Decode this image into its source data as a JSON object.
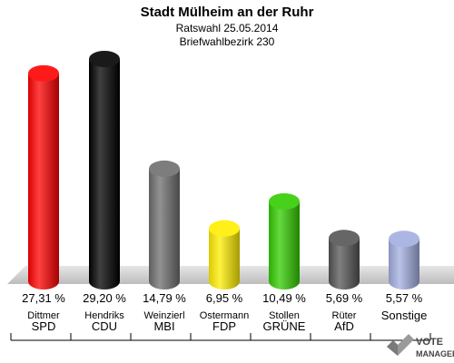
{
  "chart_data": {
    "type": "bar",
    "title": "Stadt Mülheim an der Ruhr",
    "subtitle": "Ratswahl 25.05.2014",
    "subtitle2": "Briefwahlbezirk 230",
    "xlabel": "",
    "ylabel": "",
    "ylim": [
      0,
      30
    ],
    "grid": false,
    "categories": [
      "SPD",
      "CDU",
      "MBI",
      "FDP",
      "GRÜNE",
      "AfD",
      "Sonstige"
    ],
    "candidates": [
      "Dittmer",
      "Hendriks",
      "Weinzierl",
      "Ostermann",
      "Stollen",
      "Rüter",
      ""
    ],
    "values": [
      27.31,
      29.2,
      14.79,
      6.95,
      10.49,
      5.69,
      5.57
    ],
    "value_labels": [
      "27,31 %",
      "29,20 %",
      "14,79 %",
      "6,95 %",
      "10,49 %",
      "5,69 %",
      "5,57 %"
    ],
    "colors": [
      "#ff0000",
      "#000000",
      "#6e6e6e",
      "#ffee00",
      "#33cc00",
      "#555555",
      "#a3aee0"
    ]
  },
  "logo": {
    "line1": "VOTE",
    "line2": "MANAGER"
  }
}
